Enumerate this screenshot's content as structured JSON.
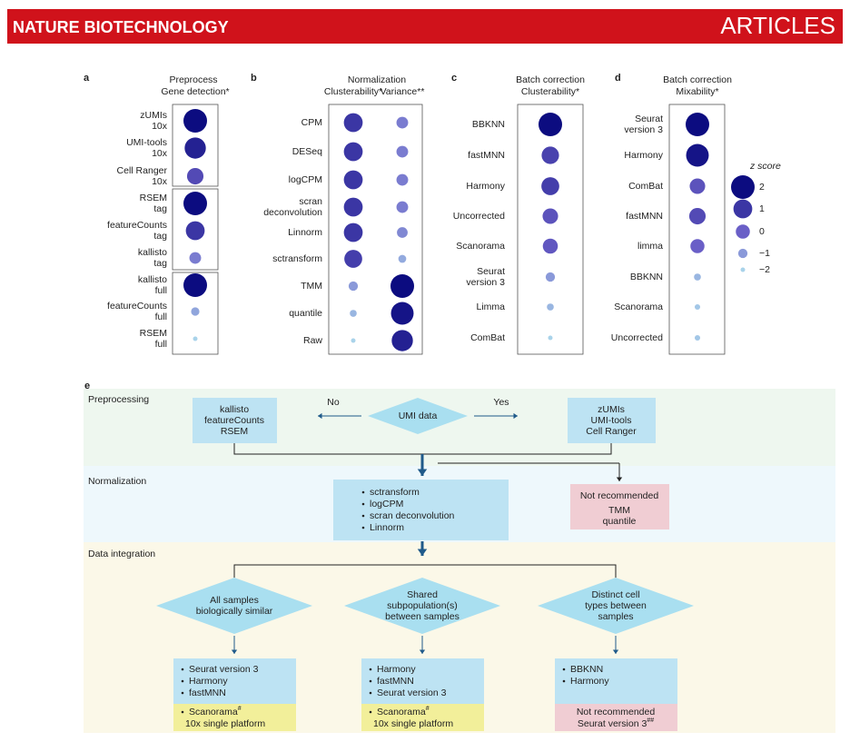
{
  "header": {
    "journal": "NATURE BIOTECHNOLOGY",
    "section": "ARTICLES"
  },
  "chart_data": [
    {
      "type": "dot",
      "label": "a",
      "title": "Preprocess",
      "categories": [
        [
          "zUMIs",
          "10x"
        ],
        [
          "UMI-tools",
          "10x"
        ],
        [
          "Cell Ranger",
          "10x"
        ],
        [
          "RSEM",
          "tag"
        ],
        [
          "featureCounts",
          "tag"
        ],
        [
          "kallisto",
          "tag"
        ],
        [
          "kallisto",
          "full"
        ],
        [
          "featureCounts",
          "full"
        ],
        [
          "RSEM",
          "full"
        ]
      ],
      "series": [
        {
          "name": "Gene detection*",
          "values": [
            2,
            1.5,
            0.5,
            2,
            1,
            -0.5,
            2,
            -1.2,
            -2
          ]
        }
      ]
    },
    {
      "type": "dot",
      "label": "b",
      "title": "Normalization",
      "categories": [
        [
          "CPM"
        ],
        [
          "DESeq"
        ],
        [
          "logCPM"
        ],
        [
          "scran",
          "deconvolution"
        ],
        [
          "Linnorm"
        ],
        [
          "sctransform"
        ],
        [
          "TMM"
        ],
        [
          "quantile"
        ],
        [
          "Raw"
        ]
      ],
      "series": [
        {
          "name": "Clusterability*",
          "values": [
            1,
            1,
            1,
            1,
            1,
            0.8,
            -1,
            -1.5,
            -2
          ]
        },
        {
          "name": "Variance**",
          "values": [
            -0.5,
            -0.5,
            -0.5,
            -0.5,
            -0.7,
            -1.3,
            2,
            1.8,
            1.5
          ]
        }
      ]
    },
    {
      "type": "dot",
      "label": "c",
      "title": "Batch correction",
      "categories": [
        [
          "BBKNN"
        ],
        [
          "fastMNN"
        ],
        [
          "Harmony"
        ],
        [
          "Uncorrected"
        ],
        [
          "Scanorama"
        ],
        [
          "Seurat",
          "version 3"
        ],
        [
          "Limma"
        ],
        [
          "ComBat"
        ]
      ],
      "series": [
        {
          "name": "Clusterability*",
          "values": [
            2,
            0.7,
            0.8,
            0.3,
            0.2,
            -1,
            -1.5,
            -2
          ]
        }
      ]
    },
    {
      "type": "dot",
      "label": "d",
      "title": "Batch correction",
      "categories": [
        [
          "Seurat",
          "version 3"
        ],
        [
          "Harmony"
        ],
        [
          "ComBat"
        ],
        [
          "fastMNN"
        ],
        [
          "limma"
        ],
        [
          "BBKNN"
        ],
        [
          "Scanorama"
        ],
        [
          "Uncorrected"
        ]
      ],
      "series": [
        {
          "name": "Mixability*",
          "values": [
            2,
            1.8,
            0.3,
            0.5,
            0,
            -1.5,
            -1.8,
            -1.8
          ]
        }
      ]
    }
  ],
  "z_scale": {
    "title": "z score",
    "zlim": [
      -2,
      2
    ],
    "colors": [
      "#a9d3ea",
      "#6a5fc7",
      "#0c0c80"
    ],
    "ticks": [
      2,
      1,
      0,
      {
        "value": -1,
        "label": "−1"
      },
      {
        "value": -2,
        "label": "−2"
      }
    ]
  },
  "flowchart": {
    "label": "e",
    "sections": [
      "Preprocessing",
      "Normalization",
      "Data integration"
    ],
    "umi_decision": "UMI data",
    "no": "No",
    "yes": "Yes",
    "no_tools": [
      "kallisto",
      "featureCounts",
      "RSEM"
    ],
    "yes_tools": [
      "zUMIs",
      "UMI-tools",
      "Cell Ranger"
    ],
    "normalization": {
      "recommended": [
        "sctransform",
        "logCPM",
        "scran deconvolution",
        "Linnorm"
      ],
      "not_recommended_heading": "Not recommended",
      "not_recommended": [
        "TMM",
        "quantile"
      ]
    },
    "integration": [
      {
        "scenario": [
          "All samples",
          "biologically similar"
        ],
        "recommended": [
          "Seurat version 3",
          "Harmony",
          "fastMNN"
        ],
        "note": {
          "tool": "Scanorama",
          "mark": "#",
          "condition": "10x single platform"
        }
      },
      {
        "scenario": [
          "Shared",
          "subpopulation(s)",
          "between samples"
        ],
        "recommended": [
          "Harmony",
          "fastMNN",
          "Seurat version 3"
        ],
        "note": {
          "tool": "Scanorama",
          "mark": "#",
          "condition": "10x single platform"
        }
      },
      {
        "scenario": [
          "Distinct cell",
          "types between",
          "samples"
        ],
        "recommended": [
          "BBKNN",
          "Harmony"
        ],
        "not_recommended_heading": "Not recommended",
        "not_recommended": {
          "tool": "Seurat version 3",
          "mark": "##"
        }
      }
    ]
  }
}
